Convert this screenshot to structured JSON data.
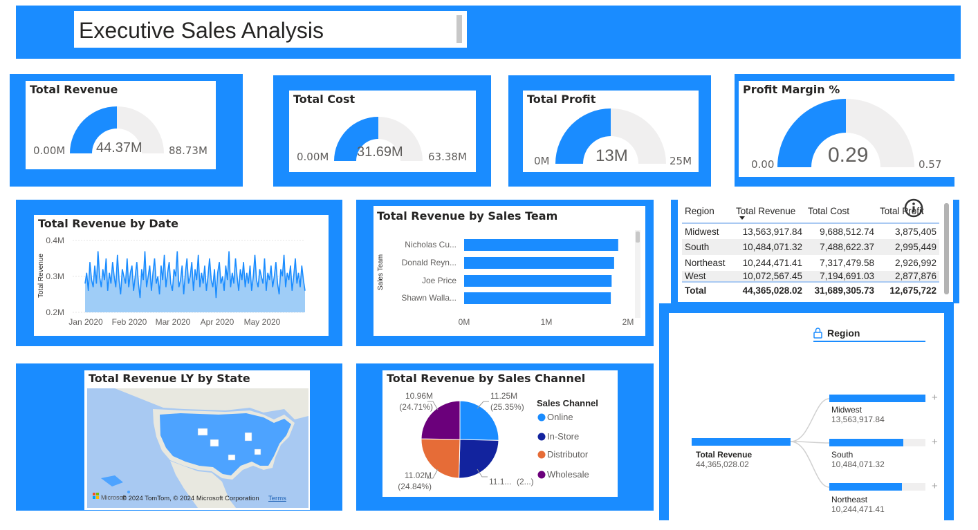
{
  "page": {
    "title": "Executive Sales Analysis"
  },
  "colors": {
    "accent": "#1a8cff",
    "gauge_track": "#f0efef",
    "area_fill": "#9fcdf7"
  },
  "gauges": [
    {
      "title": "Total Revenue",
      "value_label": "44.37M",
      "min_label": "0.00M",
      "max_label": "88.73M",
      "fraction": 0.5
    },
    {
      "title": "Total Cost",
      "value_label": "31.69M",
      "min_label": "0.00M",
      "max_label": "63.38M",
      "fraction": 0.5
    },
    {
      "title": "Total Profit",
      "value_label": "13M",
      "min_label": "0M",
      "max_label": "25M",
      "fraction": 0.5
    },
    {
      "title": "Profit Margin %",
      "value_label": "0.29",
      "min_label": "0.00",
      "max_label": "0.57",
      "fraction": 0.5
    }
  ],
  "line_chart": {
    "title": "Total Revenue by Date",
    "ylabel": "Total Revenue",
    "y_ticks": [
      "0.4M",
      "0.3M",
      "0.2M"
    ],
    "x_ticks": [
      "Jan 2020",
      "Feb 2020",
      "Mar 2020",
      "Apr 2020",
      "May 2020"
    ]
  },
  "bar_chart": {
    "title": "Total Revenue by Sales Team",
    "ylabel": "Sales Team",
    "x_ticks": [
      "0M",
      "1M",
      "2M"
    ]
  },
  "matrix": {
    "headers": [
      "Region",
      "Total Revenue",
      "Total Cost",
      "Total Profit"
    ],
    "rows": [
      [
        "Midwest",
        "13,563,917.84",
        "9,688,512.74",
        "3,875,405"
      ],
      [
        "South",
        "10,484,071.32",
        "7,488,622.37",
        "2,995,449"
      ],
      [
        "Northeast",
        "10,244,471.41",
        "7,317,479.58",
        "2,926,992"
      ],
      [
        "West",
        "10,072,567.45",
        "7,194,691.03",
        "2,877,876"
      ]
    ],
    "total": [
      "Total",
      "44,365,028.02",
      "31,689,305.73",
      "12,675,722"
    ]
  },
  "map": {
    "title": "Total Revenue LY by State",
    "attribution": "© 2024 TomTom, © 2024 Microsoft Corporation",
    "terms": "Terms",
    "brand": "Microsoft"
  },
  "pie_chart": {
    "title": "Total Revenue by Sales Channel",
    "legend_title": "Sales Channel",
    "labels": {
      "online": [
        "11.25M",
        "(25.35%)"
      ],
      "instore": [
        "11.1...",
        "(2...)"
      ],
      "distributor": [
        "11.02M",
        "(24.84%)"
      ],
      "wholesale": [
        "10.96M",
        "(24.71%)"
      ]
    }
  },
  "decomp_tree": {
    "header": "Region",
    "root_label": "Total Revenue",
    "root_value": "44,365,028.02",
    "nodes": [
      {
        "label": "Midwest",
        "value": "13,563,917.84"
      },
      {
        "label": "South",
        "value": "10,484,071.32"
      },
      {
        "label": "Northeast",
        "value": "10,244,471.41"
      }
    ]
  },
  "chart_data": [
    {
      "type": "line",
      "title": "Total Revenue by Date",
      "ylabel": "Total Revenue",
      "ylim": [
        0.2,
        0.4
      ],
      "y_unit": "M",
      "x_ticks": [
        "Jan 2020",
        "Feb 2020",
        "Mar 2020",
        "Apr 2020",
        "May 2020"
      ],
      "values": [
        0.28,
        0.31,
        0.26,
        0.34,
        0.29,
        0.27,
        0.33,
        0.28,
        0.37,
        0.3,
        0.27,
        0.32,
        0.29,
        0.35,
        0.26,
        0.31,
        0.28,
        0.34,
        0.3,
        0.27,
        0.36,
        0.29,
        0.25,
        0.32,
        0.3,
        0.28,
        0.35,
        0.27,
        0.31,
        0.33,
        0.26,
        0.3,
        0.34,
        0.28,
        0.24,
        0.32,
        0.29,
        0.37,
        0.27,
        0.3,
        0.33,
        0.26,
        0.31,
        0.35,
        0.28,
        0.3,
        0.25,
        0.33,
        0.29,
        0.36,
        0.27,
        0.31,
        0.34,
        0.28,
        0.26,
        0.32,
        0.3,
        0.37,
        0.27,
        0.29,
        0.33,
        0.25,
        0.31,
        0.35,
        0.28,
        0.3,
        0.34,
        0.26,
        0.32,
        0.29,
        0.36,
        0.27,
        0.31,
        0.28,
        0.33,
        0.26,
        0.3,
        0.35,
        0.29,
        0.27,
        0.32,
        0.24,
        0.31,
        0.34,
        0.28,
        0.3,
        0.26,
        0.33,
        0.29,
        0.37,
        0.27,
        0.31,
        0.28,
        0.35,
        0.3,
        0.26,
        0.32,
        0.29,
        0.34,
        0.27,
        0.31,
        0.28,
        0.33,
        0.26,
        0.3,
        0.36,
        0.29,
        0.27,
        0.32,
        0.3,
        0.28,
        0.35,
        0.26,
        0.31,
        0.29,
        0.33,
        0.27,
        0.3,
        0.34,
        0.28,
        0.25,
        0.32,
        0.3,
        0.36,
        0.27,
        0.31,
        0.29,
        0.33,
        0.26,
        0.3,
        0.35,
        0.28,
        0.31,
        0.27,
        0.33,
        0.29,
        0.26
      ]
    },
    {
      "type": "bar",
      "orientation": "horizontal",
      "title": "Total Revenue by Sales Team",
      "ylabel": "Sales Team",
      "xlim": [
        0,
        2
      ],
      "x_unit": "M",
      "categories": [
        "Nicholas Cu...",
        "Donald Reyn...",
        "Joe Price",
        "Shawn Walla..."
      ],
      "values": [
        1.88,
        1.83,
        1.8,
        1.79
      ]
    },
    {
      "type": "pie",
      "title": "Total Revenue by Sales Channel",
      "legend_title": "Sales Channel",
      "categories": [
        "Online",
        "In-Store",
        "Distributor",
        "Wholesale"
      ],
      "values": [
        11.25,
        11.1,
        11.02,
        10.96
      ],
      "percent": [
        25.35,
        25.1,
        24.84,
        24.71
      ],
      "colors": [
        "#1a8cff",
        "#12239e",
        "#e66c37",
        "#6b007b"
      ]
    }
  ]
}
